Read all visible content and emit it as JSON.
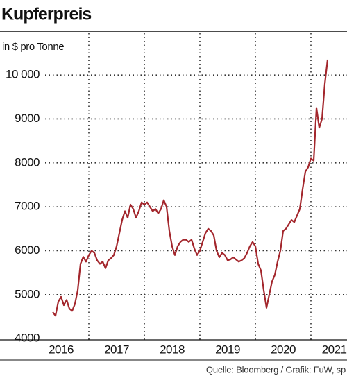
{
  "chart_data": {
    "type": "line",
    "title": "Kupferpreis",
    "subtitle": "in $ pro Tonne",
    "note": "Quelle: Bloomberg / Grafik: FuW, sp",
    "x": [
      2016.35,
      2016.4,
      2016.45,
      2016.5,
      2016.55,
      2016.6,
      2016.65,
      2016.7,
      2016.75,
      2016.8,
      2016.85,
      2016.9,
      2016.95,
      2017,
      2017.05,
      2017.1,
      2017.15,
      2017.2,
      2017.25,
      2017.3,
      2017.35,
      2017.4,
      2017.45,
      2017.5,
      2017.55,
      2017.6,
      2017.65,
      2017.7,
      2017.75,
      2017.8,
      2017.85,
      2017.9,
      2017.95,
      2018,
      2018.05,
      2018.1,
      2018.15,
      2018.2,
      2018.25,
      2018.3,
      2018.35,
      2018.4,
      2018.45,
      2018.5,
      2018.55,
      2018.6,
      2018.65,
      2018.7,
      2018.75,
      2018.8,
      2018.85,
      2018.9,
      2018.95,
      2019,
      2019.05,
      2019.1,
      2019.15,
      2019.2,
      2019.25,
      2019.3,
      2019.35,
      2019.4,
      2019.45,
      2019.5,
      2019.55,
      2019.6,
      2019.65,
      2019.7,
      2019.75,
      2019.8,
      2019.85,
      2019.9,
      2019.95,
      2020,
      2020.05,
      2020.1,
      2020.15,
      2020.2,
      2020.25,
      2020.3,
      2020.35,
      2020.4,
      2020.45,
      2020.5,
      2020.55,
      2020.6,
      2020.65,
      2020.7,
      2020.75,
      2020.8,
      2020.85,
      2020.9,
      2020.95,
      2021,
      2021.05,
      2021.1,
      2021.15,
      2021.2,
      2021.25,
      2021.3
    ],
    "series": [
      {
        "color": "#a3262c",
        "values": [
          4600,
          4520,
          4840,
          4950,
          4760,
          4880,
          4680,
          4630,
          4790,
          5100,
          5700,
          5860,
          5750,
          5900,
          6000,
          5950,
          5780,
          5700,
          5750,
          5600,
          5780,
          5830,
          5900,
          6100,
          6400,
          6700,
          6900,
          6750,
          7050,
          6950,
          6750,
          6900,
          7100,
          7050,
          7100,
          7000,
          6900,
          6950,
          6850,
          6950,
          7150,
          7000,
          6450,
          6100,
          5900,
          6100,
          6200,
          6250,
          6250,
          6200,
          6250,
          6050,
          5900,
          6000,
          6200,
          6400,
          6500,
          6450,
          6350,
          6000,
          5850,
          5950,
          5900,
          5780,
          5800,
          5850,
          5800,
          5750,
          5780,
          5830,
          5950,
          6100,
          6200,
          6100,
          5700,
          5550,
          5100,
          4700,
          5000,
          5300,
          5450,
          5750,
          6000,
          6450,
          6500,
          6600,
          6700,
          6650,
          6800,
          6950,
          7400,
          7800,
          7900,
          8100,
          8050,
          9250,
          8800,
          9000,
          9800,
          10350
        ]
      }
    ],
    "xlim": [
      2016,
      2021.65
    ],
    "xticks": [
      {
        "value": 2016.5,
        "label": "2016"
      },
      {
        "value": 2017.5,
        "label": "2017"
      },
      {
        "value": 2018.5,
        "label": "2018"
      },
      {
        "value": 2019.5,
        "label": "2019"
      },
      {
        "value": 2020.5,
        "label": "2020"
      },
      {
        "value": 2021.42,
        "label": "2021"
      }
    ],
    "xgrid": [
      2017,
      2018,
      2019,
      2020,
      2021
    ],
    "ylim": [
      3970,
      10950
    ],
    "yticks": [
      4000,
      5000,
      6000,
      7000,
      8000,
      9000,
      {
        "value": 10000,
        "label": "10 000"
      }
    ],
    "grid": true
  }
}
